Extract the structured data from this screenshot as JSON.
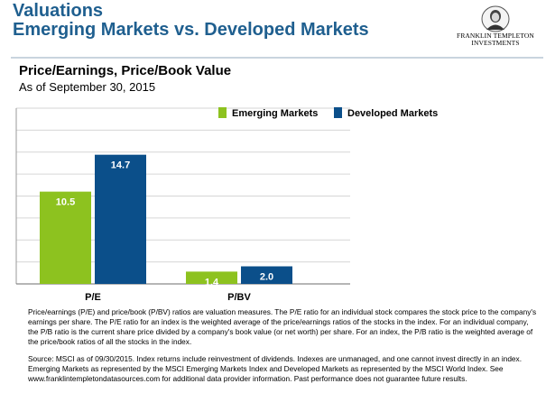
{
  "header": {
    "title_line1": "Valuations",
    "title_line2": "Emerging Markets vs. Developed Markets",
    "logo_line1": "FRANKLIN TEMPLETON",
    "logo_line2": "INVESTMENTS"
  },
  "chart_data": {
    "type": "bar",
    "title": "Price/Earnings, Price/Book Value",
    "subtitle": "As of September 30, 2015",
    "categories": [
      "P/E",
      "P/BV"
    ],
    "series": [
      {
        "name": "Emerging Markets",
        "values": [
          10.5,
          1.4
        ],
        "labels": [
          "10.5",
          "1.4"
        ],
        "color": "#8dc21f"
      },
      {
        "name": "Developed Markets",
        "values": [
          14.7,
          2.0
        ],
        "labels": [
          "14.7",
          "2.0"
        ],
        "color": "#0b4f8a"
      }
    ],
    "ylim": [
      0,
      20
    ],
    "grid": true,
    "legend": "top-right",
    "xlabel": "",
    "ylabel": ""
  },
  "notes": {
    "paragraph1": "Price/earnings (P/E) and price/book (P/BV) ratios are valuation measures. The P/E ratio for an individual stock compares the stock price to the company's earnings per share. The P/E ratio for an index is the weighted average of the price/earnings ratios of the stocks in the index. For an individual company, the P/B ratio is the current share price divided by a company's book value (or net worth) per share. For an index, the P/B ratio is the weighted average of the price/book ratios of all the stocks in the index.",
    "paragraph2": "Source: MSCI as of 09/30/2015. Index returns include reinvestment of dividends. Indexes are unmanaged, and one cannot invest directly in an index. Emerging Markets as represented by the MSCI Emerging Markets Index and Developed Markets as represented by the MSCI World Index. See www.franklintempletondatasources.com for additional data provider information. Past performance does not guarantee future results."
  }
}
